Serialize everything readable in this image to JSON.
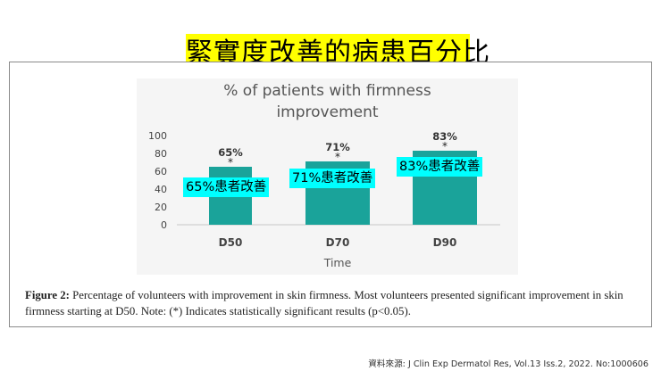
{
  "slide_title": "緊實度改善的病患百分比",
  "chart_data": {
    "type": "bar",
    "title": "% of patients with firmness\nimprovement",
    "categories": [
      "D50",
      "D70",
      "D90"
    ],
    "values": [
      65,
      71,
      83
    ],
    "data_labels": [
      "65%",
      "71%",
      "83%"
    ],
    "significance_marker": "*",
    "xlabel": "Time",
    "ylabel": "",
    "ylim": [
      0,
      100
    ],
    "yticks": [
      0,
      20,
      40,
      60,
      80,
      100
    ],
    "bar_color": "#1aa39a",
    "grid": false
  },
  "callouts": [
    "65%患者改善",
    "71%患者改善",
    "83%患者改善"
  ],
  "callout_color": "#00ffff",
  "caption": {
    "label": "Figure 2:",
    "text": " Percentage of volunteers with improvement in skin firmness. Most volunteers presented significant improvement in skin firmness starting at D50. Note: (*) Indicates statistically significant results (p<0.05)."
  },
  "source": "資料來源: J Clin Exp Dermatol Res, Vol.13 Iss.2, 2022. No:1000606"
}
